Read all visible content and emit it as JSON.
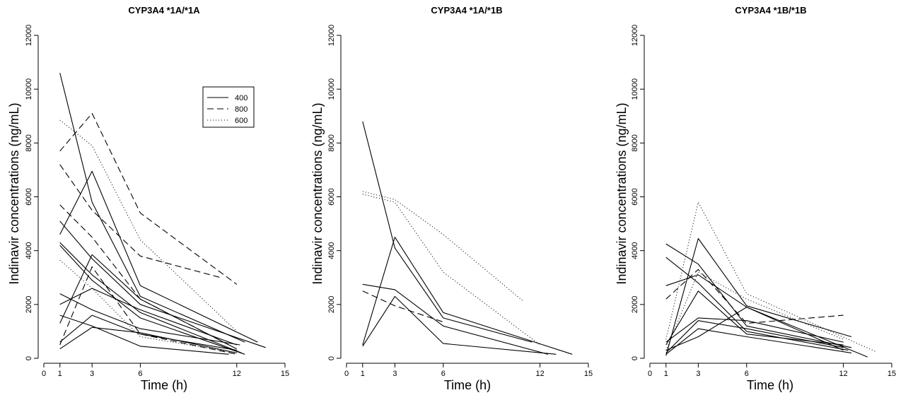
{
  "chart_data": [
    {
      "type": "line",
      "title": "CYP3A4 *1A/*1A",
      "xlabel": "Time (h)",
      "ylabel": "Indinavir concentrations (ng/mL)",
      "xlim": [
        0,
        15
      ],
      "ylim": [
        0,
        12000
      ],
      "xticks": [
        0,
        1,
        3,
        6,
        12,
        15
      ],
      "yticks": [
        0,
        2000,
        4000,
        6000,
        8000,
        10000,
        12000
      ],
      "grid": false,
      "legend": {
        "placement": "top-right",
        "entries": [
          {
            "label": "400",
            "style": "solid"
          },
          {
            "label": "800",
            "style": "dashed"
          },
          {
            "label": "600",
            "style": "dotted"
          }
        ]
      },
      "series": [
        {
          "style": "solid",
          "x": [
            1,
            3,
            6,
            12.5
          ],
          "y": [
            10600,
            5800,
            2300,
            600
          ]
        },
        {
          "style": "solid",
          "x": [
            1,
            3,
            6,
            13.3
          ],
          "y": [
            4600,
            6950,
            2700,
            600
          ]
        },
        {
          "style": "solid",
          "x": [
            1,
            3,
            6,
            13.8
          ],
          "y": [
            5100,
            3700,
            2000,
            400
          ]
        },
        {
          "style": "solid",
          "x": [
            1,
            3,
            6,
            12.3
          ],
          "y": [
            4300,
            3100,
            1700,
            200
          ]
        },
        {
          "style": "solid",
          "x": [
            1,
            3,
            6,
            12.5
          ],
          "y": [
            4200,
            2900,
            1500,
            150
          ]
        },
        {
          "style": "solid",
          "x": [
            1,
            3,
            6,
            12.0
          ],
          "y": [
            2000,
            2600,
            1800,
            500
          ]
        },
        {
          "style": "solid",
          "x": [
            1,
            3,
            6,
            12.0
          ],
          "y": [
            1300,
            3850,
            2200,
            350
          ]
        },
        {
          "style": "solid",
          "x": [
            1,
            3,
            6,
            12.2
          ],
          "y": [
            2400,
            1800,
            1100,
            500
          ]
        },
        {
          "style": "solid",
          "x": [
            1,
            3,
            6,
            12.0
          ],
          "y": [
            600,
            1600,
            900,
            300
          ]
        },
        {
          "style": "solid",
          "x": [
            1,
            3,
            6,
            12.0
          ],
          "y": [
            350,
            1150,
            950,
            200
          ]
        },
        {
          "style": "solid",
          "x": [
            1,
            3,
            6,
            11.5
          ],
          "y": [
            1600,
            1200,
            450,
            150
          ]
        },
        {
          "style": "dashed",
          "x": [
            1,
            3,
            6,
            12.0
          ],
          "y": [
            7700,
            9100,
            5400,
            2750
          ]
        },
        {
          "style": "dashed",
          "x": [
            1,
            3,
            6,
            11.0
          ],
          "y": [
            7200,
            5500,
            3800,
            3000
          ]
        },
        {
          "style": "dashed",
          "x": [
            1,
            3,
            6,
            11.5
          ],
          "y": [
            5700,
            4500,
            2200,
            500
          ]
        },
        {
          "style": "dashed",
          "x": [
            1,
            3,
            6,
            12.0
          ],
          "y": [
            500,
            3400,
            900,
            150
          ]
        },
        {
          "style": "dotted",
          "x": [
            1,
            3,
            6,
            12.0
          ],
          "y": [
            8850,
            7900,
            4400,
            1000
          ]
        },
        {
          "style": "dotted",
          "x": [
            1,
            3,
            6,
            12.0
          ],
          "y": [
            3650,
            2600,
            800,
            200
          ]
        }
      ]
    },
    {
      "type": "line",
      "title": "CYP3A4 *1A/*1B",
      "xlabel": "Time (h)",
      "ylabel": "Indinavir concentrations (ng/mL)",
      "xlim": [
        0,
        15
      ],
      "ylim": [
        0,
        12000
      ],
      "xticks": [
        0,
        1,
        3,
        6,
        12,
        15
      ],
      "yticks": [
        0,
        2000,
        4000,
        6000,
        8000,
        10000,
        12000
      ],
      "grid": false,
      "series": [
        {
          "style": "solid",
          "x": [
            1,
            3,
            6,
            11.5
          ],
          "y": [
            8800,
            4100,
            1500,
            600
          ]
        },
        {
          "style": "solid",
          "x": [
            1,
            3,
            6,
            14.0
          ],
          "y": [
            500,
            4500,
            1700,
            150
          ]
        },
        {
          "style": "solid",
          "x": [
            1,
            3,
            6,
            12.5
          ],
          "y": [
            2750,
            2550,
            1200,
            150
          ]
        },
        {
          "style": "solid",
          "x": [
            1,
            3,
            6,
            13.0
          ],
          "y": [
            450,
            2300,
            550,
            150
          ]
        },
        {
          "style": "dashed",
          "x": [
            1,
            3,
            6
          ],
          "y": [
            2500,
            1950,
            1350
          ]
        },
        {
          "style": "dotted",
          "x": [
            1,
            3,
            6,
            11.0
          ],
          "y": [
            6200,
            5900,
            4600,
            2100
          ]
        },
        {
          "style": "dotted",
          "x": [
            1,
            3,
            6,
            12.0
          ],
          "y": [
            6100,
            5800,
            3200,
            500
          ]
        }
      ]
    },
    {
      "type": "line",
      "title": "CYP3A4 *1B/*1B",
      "xlabel": "Time (h)",
      "ylabel": "Indinavir concentrations (ng/mL)",
      "xlim": [
        0,
        15
      ],
      "ylim": [
        0,
        12000
      ],
      "xticks": [
        0,
        1,
        3,
        6,
        12,
        15
      ],
      "yticks": [
        0,
        2000,
        4000,
        6000,
        8000,
        10000,
        12000
      ],
      "grid": false,
      "series": [
        {
          "style": "solid",
          "x": [
            1,
            3,
            6,
            12.5
          ],
          "y": [
            4250,
            3500,
            1200,
            400
          ]
        },
        {
          "style": "solid",
          "x": [
            1,
            3,
            6,
            12.3
          ],
          "y": [
            3750,
            2800,
            1000,
            300
          ]
        },
        {
          "style": "solid",
          "x": [
            1,
            3,
            6,
            12.0
          ],
          "y": [
            2700,
            3100,
            1900,
            300
          ]
        },
        {
          "style": "solid",
          "x": [
            1,
            3,
            6,
            12.5
          ],
          "y": [
            100,
            4450,
            1950,
            800
          ]
        },
        {
          "style": "solid",
          "x": [
            1,
            3,
            6,
            12.0
          ],
          "y": [
            500,
            2500,
            900,
            500
          ]
        },
        {
          "style": "solid",
          "x": [
            1,
            3,
            6,
            12.0
          ],
          "y": [
            600,
            1500,
            1400,
            600
          ]
        },
        {
          "style": "solid",
          "x": [
            1,
            3,
            6,
            12.0
          ],
          "y": [
            200,
            1400,
            1100,
            400
          ]
        },
        {
          "style": "solid",
          "x": [
            1,
            3,
            6,
            12.5
          ],
          "y": [
            150,
            1100,
            800,
            200
          ]
        },
        {
          "style": "solid",
          "x": [
            1,
            3,
            6,
            13.5
          ],
          "y": [
            300,
            800,
            1900,
            50
          ]
        },
        {
          "style": "dashed",
          "x": [
            1,
            3,
            6,
            12.0
          ],
          "y": [
            2200,
            3300,
            1300,
            1600
          ]
        },
        {
          "style": "dotted",
          "x": [
            1,
            3,
            6,
            14.0
          ],
          "y": [
            700,
            5800,
            2400,
            250
          ]
        },
        {
          "style": "dotted",
          "x": [
            1,
            3,
            6,
            12.0
          ],
          "y": [
            300,
            3200,
            2200,
            700
          ]
        }
      ]
    }
  ]
}
